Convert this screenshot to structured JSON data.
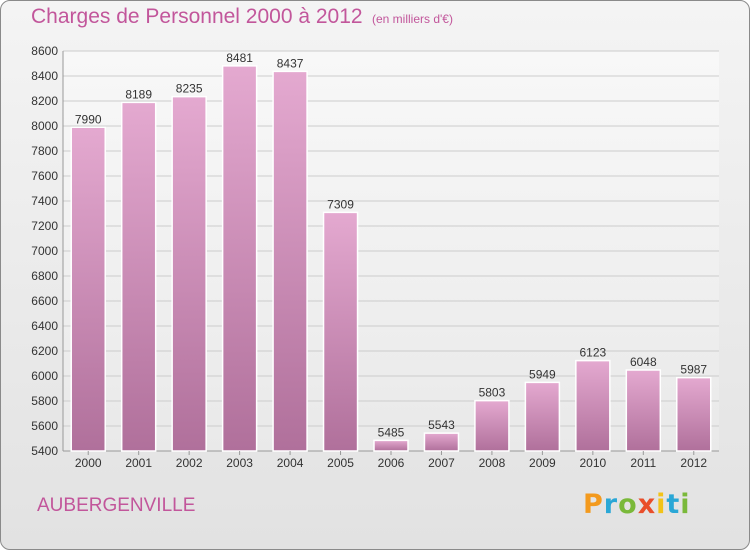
{
  "header": {
    "title": "Charges de Personnel 2000 à 2012",
    "subtitle": "(en milliers d'€)"
  },
  "footer": {
    "city": "AUBERGENVILLE",
    "logo_letters": [
      "P",
      "r",
      "o",
      "x",
      "i",
      "t",
      "i"
    ]
  },
  "colors": {
    "accent": "#c2569b",
    "bar_top": "#e4a9d0",
    "bar_bottom": "#b0709b"
  },
  "chart_data": {
    "type": "bar",
    "title": "Charges de Personnel 2000 à 2012",
    "subtitle": "(en milliers d'€)",
    "xlabel": "",
    "ylabel": "",
    "categories": [
      "2000",
      "2001",
      "2002",
      "2003",
      "2004",
      "2005",
      "2006",
      "2007",
      "2008",
      "2009",
      "2010",
      "2011",
      "2012"
    ],
    "values": [
      7990,
      8189,
      8235,
      8481,
      8437,
      7309,
      5485,
      5543,
      5803,
      5949,
      6123,
      6048,
      5987
    ],
    "ylim": [
      5400,
      8600
    ],
    "yticks": [
      5400,
      5600,
      5800,
      6000,
      6200,
      6400,
      6600,
      6800,
      7000,
      7200,
      7400,
      7600,
      7800,
      8000,
      8200,
      8400,
      8600
    ],
    "grid": true,
    "data_labels": true
  }
}
